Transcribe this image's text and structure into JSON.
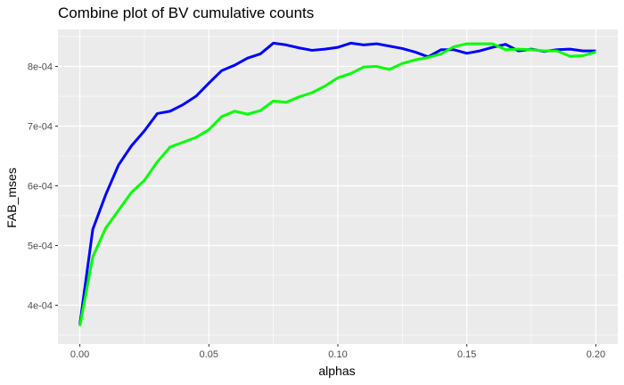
{
  "chart_data": {
    "type": "line",
    "title": "Combine plot of BV cumulative counts",
    "xlabel": "alphas",
    "ylabel": "FAB_mses",
    "xlim": [
      -0.0085,
      0.2085
    ],
    "ylim": [
      0.000335,
      0.000862
    ],
    "x_ticks": [
      0.0,
      0.05,
      0.1,
      0.15,
      0.2
    ],
    "x_tick_labels": [
      "0.00",
      "0.05",
      "0.10",
      "0.15",
      "0.20"
    ],
    "y_ticks": [
      0.0004,
      0.0005,
      0.0006,
      0.0007,
      0.0008
    ],
    "y_tick_labels": [
      "4e-04",
      "5e-04",
      "6e-04",
      "7e-04",
      "8e-04"
    ],
    "grid": true,
    "legend": "none",
    "background": "#EBEBEB",
    "gridline_color": "#FFFFFF",
    "x": [
      0.0,
      0.005,
      0.01,
      0.015,
      0.02,
      0.025,
      0.03,
      0.035,
      0.04,
      0.045,
      0.05,
      0.055,
      0.06,
      0.065,
      0.07,
      0.075,
      0.08,
      0.085,
      0.09,
      0.095,
      0.1,
      0.105,
      0.11,
      0.115,
      0.12,
      0.125,
      0.13,
      0.135,
      0.14,
      0.145,
      0.15,
      0.155,
      0.16,
      0.165,
      0.17,
      0.175,
      0.18,
      0.185,
      0.19,
      0.195,
      0.2
    ],
    "series": [
      {
        "color": "#0000FF",
        "values": [
          0.000368,
          0.000527,
          0.000585,
          0.000635,
          0.000667,
          0.000692,
          0.000721,
          0.000725,
          0.000736,
          0.00075,
          0.000772,
          0.000793,
          0.000802,
          0.000814,
          0.000821,
          0.000839,
          0.000836,
          0.000831,
          0.000827,
          0.000829,
          0.000832,
          0.000839,
          0.000836,
          0.000838,
          0.000834,
          0.00083,
          0.000824,
          0.000816,
          0.000828,
          0.000828,
          0.000822,
          0.000826,
          0.000832,
          0.000837,
          0.000826,
          0.000829,
          0.000825,
          0.000828,
          0.000829,
          0.000826,
          0.000826
        ]
      },
      {
        "color": "#00FF00",
        "values": [
          0.000365,
          0.000481,
          0.000529,
          0.000559,
          0.000589,
          0.000609,
          0.00064,
          0.000665,
          0.000673,
          0.000681,
          0.000694,
          0.000716,
          0.000725,
          0.00072,
          0.000726,
          0.000742,
          0.00074,
          0.000749,
          0.000756,
          0.000767,
          0.000781,
          0.000788,
          0.000799,
          0.0008,
          0.000795,
          0.000805,
          0.000811,
          0.000815,
          0.000821,
          0.000833,
          0.000838,
          0.000838,
          0.000838,
          0.000828,
          0.000829,
          0.000828,
          0.000826,
          0.000826,
          0.000817,
          0.000818,
          0.000824
        ]
      }
    ]
  }
}
